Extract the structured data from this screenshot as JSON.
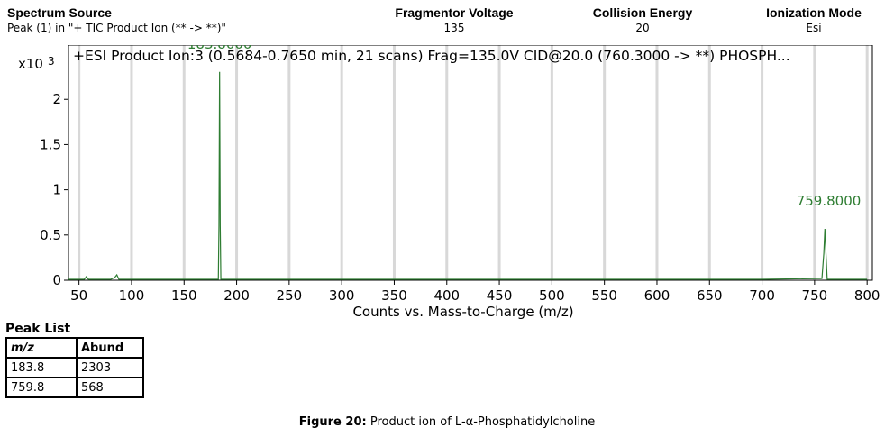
{
  "header": {
    "spectrum_source_label": "Spectrum Source",
    "spectrum_source_value": "Peak (1) in \"+ TIC Product Ion (** -> **)\"",
    "fragmentor_label": "Fragmentor Voltage",
    "fragmentor_value": "135",
    "collision_label": "Collision Energy",
    "collision_value": "20",
    "ionization_label": "Ionization Mode",
    "ionization_value": "Esi"
  },
  "chart_data": {
    "type": "line",
    "title": "+ESI Product Ion:3 (0.5684-0.7650 min, 21 scans) Frag=135.0V CID@20.0 (760.3000 -> **) PHOSPH...",
    "xlabel": "Counts vs. Mass-to-Charge (m/z)",
    "ylabel": "",
    "y_multiplier_label": "x10",
    "y_multiplier_exp": "3",
    "xlim": [
      40,
      805
    ],
    "ylim": [
      0,
      2.6
    ],
    "x_ticks": [
      50,
      100,
      150,
      200,
      250,
      300,
      350,
      400,
      450,
      500,
      550,
      600,
      650,
      700,
      750,
      800
    ],
    "y_ticks": [
      0,
      0.5,
      1,
      1.5,
      2
    ],
    "y_tick_labels": [
      "0",
      "0.5",
      "1",
      "1.5",
      "2"
    ],
    "grid": true,
    "line_color": "#2e7d32",
    "series": [
      {
        "x": [
          40,
          55,
          57,
          59,
          80,
          84,
          86,
          88,
          182.6,
          183.2,
          183.8,
          184.4,
          185.0,
          700,
          757,
          758.8,
          759.8,
          760.8,
          762,
          800
        ],
        "y": [
          0.01,
          0.01,
          0.04,
          0.01,
          0.01,
          0.03,
          0.06,
          0.01,
          0.01,
          0.6,
          2.303,
          0.6,
          0.01,
          0.01,
          0.02,
          0.3,
          0.568,
          0.3,
          0.01,
          0.01
        ]
      }
    ],
    "annotations": [
      {
        "x": 183.8,
        "y": 2.303,
        "label": "183.8000"
      },
      {
        "x": 759.8,
        "y": 0.568,
        "label": "759.8000"
      }
    ]
  },
  "peak_list": {
    "title": "Peak List",
    "columns": [
      "m/z",
      "Abund"
    ],
    "rows": [
      [
        "183.8",
        "2303"
      ],
      [
        "759.8",
        "568"
      ]
    ]
  },
  "caption": {
    "label": "Figure 20:",
    "text": " Product ion of L-α-Phosphatidylcholine"
  }
}
